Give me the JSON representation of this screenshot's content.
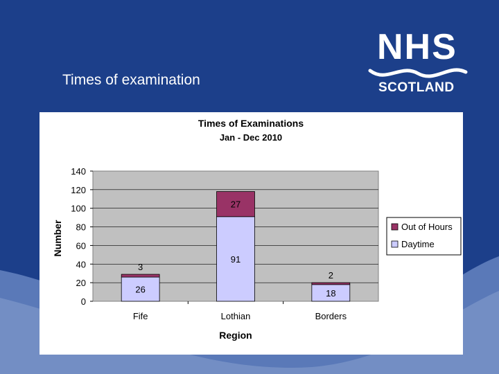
{
  "slide": {
    "title": "Times of examination"
  },
  "logo": {
    "nhs": "NHS",
    "scotland": "SCOTLAND"
  },
  "colors": {
    "background": "#1c3f8a",
    "plot_area": "#c0c0c0",
    "daytime": "#ccccff",
    "out_of_hours": "#993366"
  },
  "chart_data": {
    "type": "bar",
    "stacked": true,
    "title": "Times of Examinations",
    "subtitle": "Jan - Dec 2010",
    "xlabel": "Region",
    "ylabel": "Number",
    "categories": [
      "Fife",
      "Lothian",
      "Borders"
    ],
    "series": [
      {
        "name": "Daytime",
        "values": [
          26,
          91,
          18
        ],
        "color": "#ccccff"
      },
      {
        "name": "Out of Hours",
        "values": [
          3,
          27,
          2
        ],
        "color": "#993366"
      }
    ],
    "ylim": [
      0,
      140
    ],
    "yticks": [
      0,
      20,
      40,
      60,
      80,
      100,
      120,
      140
    ],
    "grid": true,
    "legend": "right",
    "legend_order": [
      "Out of Hours",
      "Daytime"
    ]
  }
}
